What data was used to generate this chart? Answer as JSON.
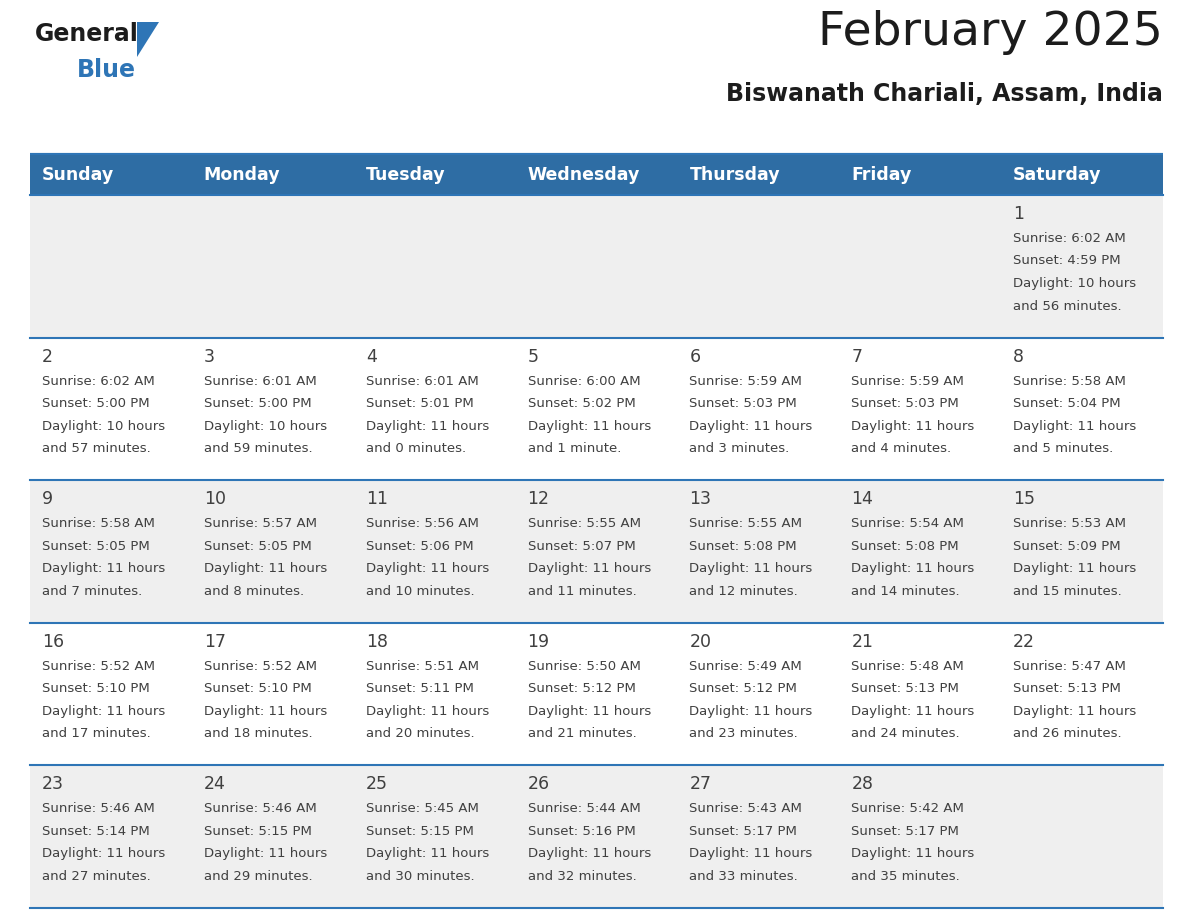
{
  "title": "February 2025",
  "subtitle": "Biswanath Chariali, Assam, India",
  "header_bg": "#2E6DA4",
  "header_text_color": "#FFFFFF",
  "days_of_week": [
    "Sunday",
    "Monday",
    "Tuesday",
    "Wednesday",
    "Thursday",
    "Friday",
    "Saturday"
  ],
  "row_bg": [
    "#EFEFEF",
    "#FFFFFF",
    "#EFEFEF",
    "#FFFFFF",
    "#EFEFEF"
  ],
  "divider_color": "#2E75B6",
  "text_color": "#404040",
  "cell_data": [
    [
      null,
      null,
      null,
      null,
      null,
      null,
      {
        "day": "1",
        "sunrise": "6:02 AM",
        "sunset": "4:59 PM",
        "daylight_l1": "Daylight: 10 hours",
        "daylight_l2": "and 56 minutes."
      }
    ],
    [
      {
        "day": "2",
        "sunrise": "6:02 AM",
        "sunset": "5:00 PM",
        "daylight_l1": "Daylight: 10 hours",
        "daylight_l2": "and 57 minutes."
      },
      {
        "day": "3",
        "sunrise": "6:01 AM",
        "sunset": "5:00 PM",
        "daylight_l1": "Daylight: 10 hours",
        "daylight_l2": "and 59 minutes."
      },
      {
        "day": "4",
        "sunrise": "6:01 AM",
        "sunset": "5:01 PM",
        "daylight_l1": "Daylight: 11 hours",
        "daylight_l2": "and 0 minutes."
      },
      {
        "day": "5",
        "sunrise": "6:00 AM",
        "sunset": "5:02 PM",
        "daylight_l1": "Daylight: 11 hours",
        "daylight_l2": "and 1 minute."
      },
      {
        "day": "6",
        "sunrise": "5:59 AM",
        "sunset": "5:03 PM",
        "daylight_l1": "Daylight: 11 hours",
        "daylight_l2": "and 3 minutes."
      },
      {
        "day": "7",
        "sunrise": "5:59 AM",
        "sunset": "5:03 PM",
        "daylight_l1": "Daylight: 11 hours",
        "daylight_l2": "and 4 minutes."
      },
      {
        "day": "8",
        "sunrise": "5:58 AM",
        "sunset": "5:04 PM",
        "daylight_l1": "Daylight: 11 hours",
        "daylight_l2": "and 5 minutes."
      }
    ],
    [
      {
        "day": "9",
        "sunrise": "5:58 AM",
        "sunset": "5:05 PM",
        "daylight_l1": "Daylight: 11 hours",
        "daylight_l2": "and 7 minutes."
      },
      {
        "day": "10",
        "sunrise": "5:57 AM",
        "sunset": "5:05 PM",
        "daylight_l1": "Daylight: 11 hours",
        "daylight_l2": "and 8 minutes."
      },
      {
        "day": "11",
        "sunrise": "5:56 AM",
        "sunset": "5:06 PM",
        "daylight_l1": "Daylight: 11 hours",
        "daylight_l2": "and 10 minutes."
      },
      {
        "day": "12",
        "sunrise": "5:55 AM",
        "sunset": "5:07 PM",
        "daylight_l1": "Daylight: 11 hours",
        "daylight_l2": "and 11 minutes."
      },
      {
        "day": "13",
        "sunrise": "5:55 AM",
        "sunset": "5:08 PM",
        "daylight_l1": "Daylight: 11 hours",
        "daylight_l2": "and 12 minutes."
      },
      {
        "day": "14",
        "sunrise": "5:54 AM",
        "sunset": "5:08 PM",
        "daylight_l1": "Daylight: 11 hours",
        "daylight_l2": "and 14 minutes."
      },
      {
        "day": "15",
        "sunrise": "5:53 AM",
        "sunset": "5:09 PM",
        "daylight_l1": "Daylight: 11 hours",
        "daylight_l2": "and 15 minutes."
      }
    ],
    [
      {
        "day": "16",
        "sunrise": "5:52 AM",
        "sunset": "5:10 PM",
        "daylight_l1": "Daylight: 11 hours",
        "daylight_l2": "and 17 minutes."
      },
      {
        "day": "17",
        "sunrise": "5:52 AM",
        "sunset": "5:10 PM",
        "daylight_l1": "Daylight: 11 hours",
        "daylight_l2": "and 18 minutes."
      },
      {
        "day": "18",
        "sunrise": "5:51 AM",
        "sunset": "5:11 PM",
        "daylight_l1": "Daylight: 11 hours",
        "daylight_l2": "and 20 minutes."
      },
      {
        "day": "19",
        "sunrise": "5:50 AM",
        "sunset": "5:12 PM",
        "daylight_l1": "Daylight: 11 hours",
        "daylight_l2": "and 21 minutes."
      },
      {
        "day": "20",
        "sunrise": "5:49 AM",
        "sunset": "5:12 PM",
        "daylight_l1": "Daylight: 11 hours",
        "daylight_l2": "and 23 minutes."
      },
      {
        "day": "21",
        "sunrise": "5:48 AM",
        "sunset": "5:13 PM",
        "daylight_l1": "Daylight: 11 hours",
        "daylight_l2": "and 24 minutes."
      },
      {
        "day": "22",
        "sunrise": "5:47 AM",
        "sunset": "5:13 PM",
        "daylight_l1": "Daylight: 11 hours",
        "daylight_l2": "and 26 minutes."
      }
    ],
    [
      {
        "day": "23",
        "sunrise": "5:46 AM",
        "sunset": "5:14 PM",
        "daylight_l1": "Daylight: 11 hours",
        "daylight_l2": "and 27 minutes."
      },
      {
        "day": "24",
        "sunrise": "5:46 AM",
        "sunset": "5:15 PM",
        "daylight_l1": "Daylight: 11 hours",
        "daylight_l2": "and 29 minutes."
      },
      {
        "day": "25",
        "sunrise": "5:45 AM",
        "sunset": "5:15 PM",
        "daylight_l1": "Daylight: 11 hours",
        "daylight_l2": "and 30 minutes."
      },
      {
        "day": "26",
        "sunrise": "5:44 AM",
        "sunset": "5:16 PM",
        "daylight_l1": "Daylight: 11 hours",
        "daylight_l2": "and 32 minutes."
      },
      {
        "day": "27",
        "sunrise": "5:43 AM",
        "sunset": "5:17 PM",
        "daylight_l1": "Daylight: 11 hours",
        "daylight_l2": "and 33 minutes."
      },
      {
        "day": "28",
        "sunrise": "5:42 AM",
        "sunset": "5:17 PM",
        "daylight_l1": "Daylight: 11 hours",
        "daylight_l2": "and 35 minutes."
      },
      null
    ]
  ]
}
